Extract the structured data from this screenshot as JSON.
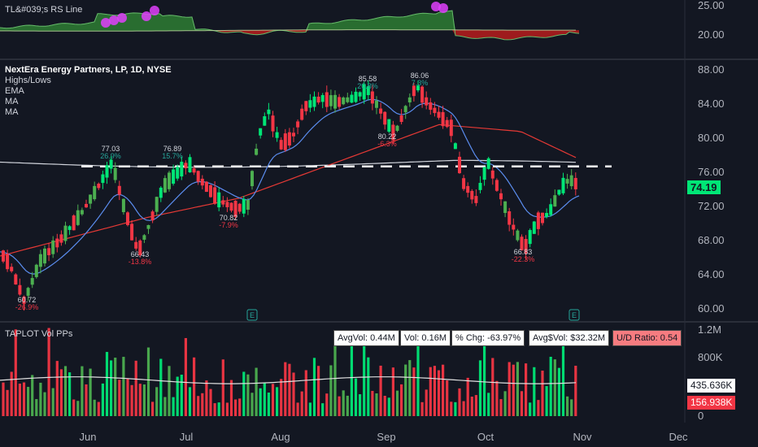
{
  "rs_panel": {
    "title": "TL&#039;s RS Line",
    "axis_ticks": [
      "25.00",
      "20.00"
    ]
  },
  "main_panel": {
    "legend": [
      "NextEra Energy Partners, LP, 1D, NYSE",
      "Highs/Lows",
      "EMA",
      "MA",
      "MA"
    ],
    "price_ticks": [
      "88.00",
      "84.00",
      "80.00",
      "76.00",
      "72.00",
      "68.00",
      "64.00",
      "60.00"
    ],
    "last_price": "74.19",
    "earnings_marker": "E"
  },
  "volume_panel": {
    "title": "TAPLOT Vol PPs",
    "axis_ticks": [
      "1.2M",
      "800K",
      "0"
    ],
    "avg_value_tag": "435.636K",
    "last_value_tag": "156.938K",
    "stats": [
      {
        "label": "AvgVol: 0.44M"
      },
      {
        "label": "Vol: 0.16M"
      },
      {
        "label": "% Chg: -63.97%"
      },
      {
        "label": "Avg$Vol: $32.32M"
      },
      {
        "label": "U/D Ratio: 0.54"
      }
    ]
  },
  "time_axis": [
    "Jun",
    "Jul",
    "Aug",
    "Sep",
    "Oct",
    "Nov",
    "Dec"
  ],
  "colors": {
    "up": "#4caf50",
    "up_bright": "#00e676",
    "down": "#f23645",
    "ema": "#5b8def",
    "ma_slow": "#e53935",
    "ma_long": "#d1d4dc",
    "resistance": "#ffffff",
    "rs_pink": "#e040fb"
  },
  "chart_data": {
    "type": "candlestick",
    "title": "NextEra Energy Partners, LP, 1D, NYSE",
    "ylim": [
      59,
      89
    ],
    "resistance_level": 76.5,
    "last_price": 74.19,
    "annotations": [
      {
        "value": "60.72",
        "pct": "-26.9%",
        "kind": "low"
      },
      {
        "value": "77.03",
        "pct": "26.9%",
        "kind": "high"
      },
      {
        "value": "66.43",
        "pct": "-13.8%",
        "kind": "low"
      },
      {
        "value": "76.89",
        "pct": "15.7%",
        "kind": "high"
      },
      {
        "value": "70.82",
        "pct": "-7.9%",
        "kind": "low"
      },
      {
        "value": "85.58",
        "pct": "20.8%",
        "kind": "high"
      },
      {
        "value": "80.22",
        "pct": "-6.3%",
        "kind": "low"
      },
      {
        "value": "86.06",
        "pct": "7.3%",
        "kind": "high"
      },
      {
        "value": "66.83",
        "pct": "-22.3%",
        "kind": "low"
      }
    ],
    "volume": {
      "ylim": [
        0,
        1200000
      ],
      "avg": 435636,
      "last": 156938
    }
  }
}
